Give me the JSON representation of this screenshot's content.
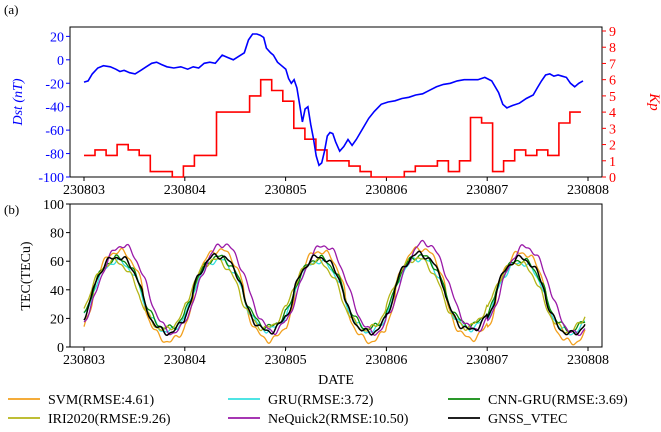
{
  "chart_data": [
    {
      "type": "line",
      "panel_label": "(a)",
      "x": [
        "230803",
        "230804",
        "230805",
        "230806",
        "230807",
        "230808"
      ],
      "ylabel_left": "Dst (nT)",
      "ylabel_right": "Kp",
      "ylim_left": [
        -100,
        28
      ],
      "ylim_right": [
        0,
        9
      ],
      "yticks_left": [
        "20",
        "0",
        "-20",
        "-40",
        "-60",
        "-80",
        "-100"
      ],
      "yticks_right": [
        "0",
        "1",
        "2",
        "3",
        "4",
        "5",
        "6",
        "7",
        "8",
        "9"
      ],
      "colors": {
        "dst": "#0000ff",
        "kp": "#ff0000"
      },
      "series": [
        {
          "name": "Dst",
          "axis": "left",
          "points": [
            [
              0.0,
              -19
            ],
            [
              0.06,
              -18
            ],
            [
              0.12,
              -12
            ],
            [
              0.2,
              -7
            ],
            [
              0.28,
              -5
            ],
            [
              0.38,
              -6
            ],
            [
              0.46,
              -8
            ],
            [
              0.52,
              -10
            ],
            [
              0.58,
              -9
            ],
            [
              0.66,
              -11
            ],
            [
              0.74,
              -12
            ],
            [
              0.82,
              -9
            ],
            [
              0.9,
              -6
            ],
            [
              0.98,
              -3
            ],
            [
              1.05,
              -2
            ],
            [
              1.12,
              -4
            ],
            [
              1.2,
              -6
            ],
            [
              1.3,
              -7
            ],
            [
              1.4,
              -6
            ],
            [
              1.5,
              -8
            ],
            [
              1.58,
              -6
            ],
            [
              1.66,
              -7
            ],
            [
              1.74,
              -3
            ],
            [
              1.82,
              -2
            ],
            [
              1.9,
              -3
            ],
            [
              2.0,
              4
            ],
            [
              2.08,
              2
            ],
            [
              2.16,
              0
            ],
            [
              2.24,
              3
            ],
            [
              2.32,
              6
            ],
            [
              2.38,
              17
            ],
            [
              2.44,
              22
            ],
            [
              2.5,
              22
            ],
            [
              2.55,
              21
            ],
            [
              2.6,
              19
            ],
            [
              2.64,
              10
            ],
            [
              2.7,
              6
            ],
            [
              2.74,
              4
            ],
            [
              2.8,
              -2
            ],
            [
              2.86,
              -5
            ],
            [
              2.92,
              -8
            ],
            [
              2.96,
              -16
            ],
            [
              3.0,
              -20
            ],
            [
              3.04,
              -17
            ],
            [
              3.08,
              -24
            ],
            [
              3.12,
              -38
            ],
            [
              3.16,
              -53
            ],
            [
              3.2,
              -42
            ],
            [
              3.24,
              -40
            ],
            [
              3.28,
              -55
            ],
            [
              3.32,
              -67
            ],
            [
              3.36,
              -82
            ],
            [
              3.4,
              -90
            ],
            [
              3.44,
              -88
            ],
            [
              3.48,
              -78
            ],
            [
              3.52,
              -65
            ],
            [
              3.56,
              -62
            ],
            [
              3.6,
              -63
            ],
            [
              3.64,
              -70
            ],
            [
              3.7,
              -78
            ],
            [
              3.76,
              -74
            ],
            [
              3.82,
              -68
            ],
            [
              3.88,
              -73
            ],
            [
              3.94,
              -68
            ],
            [
              4.0,
              -62
            ],
            [
              4.06,
              -56
            ],
            [
              4.12,
              -50
            ],
            [
              4.2,
              -44
            ],
            [
              4.3,
              -38
            ],
            [
              4.4,
              -36
            ],
            [
              4.5,
              -35
            ],
            [
              4.6,
              -33
            ],
            [
              4.7,
              -32
            ],
            [
              4.8,
              -30
            ],
            [
              4.9,
              -29
            ],
            [
              5.0,
              -26
            ],
            [
              5.1,
              -23
            ],
            [
              5.2,
              -21
            ],
            [
              5.3,
              -20
            ],
            [
              5.4,
              -18
            ],
            [
              5.5,
              -17
            ],
            [
              5.6,
              -17
            ],
            [
              5.7,
              -17
            ],
            [
              5.8,
              -15
            ],
            [
              5.9,
              -18
            ],
            [
              6.0,
              -28
            ],
            [
              6.06,
              -38
            ],
            [
              6.12,
              -41
            ],
            [
              6.2,
              -39
            ],
            [
              6.3,
              -37
            ],
            [
              6.4,
              -33
            ],
            [
              6.5,
              -30
            ],
            [
              6.56,
              -24
            ],
            [
              6.62,
              -18
            ],
            [
              6.68,
              -13
            ],
            [
              6.74,
              -12
            ],
            [
              6.8,
              -14
            ],
            [
              6.86,
              -13
            ],
            [
              6.92,
              -14
            ],
            [
              6.98,
              -15
            ],
            [
              7.04,
              -20
            ],
            [
              7.1,
              -23
            ],
            [
              7.16,
              -20
            ],
            [
              7.22,
              -18
            ]
          ]
        },
        {
          "name": "Kp",
          "axis": "right",
          "step": true,
          "points": [
            [
              0.0,
              1.33
            ],
            [
              0.22,
              1.67
            ],
            [
              0.44,
              1.33
            ],
            [
              0.66,
              2.0
            ],
            [
              0.88,
              1.67
            ],
            [
              1.1,
              1.33
            ],
            [
              1.32,
              0.33
            ],
            [
              1.76,
              0.0
            ],
            [
              1.98,
              0.67
            ],
            [
              2.2,
              1.33
            ],
            [
              2.64,
              4.0
            ],
            [
              3.3,
              5.0
            ],
            [
              3.52,
              6.0
            ],
            [
              3.74,
              5.33
            ],
            [
              3.96,
              4.67
            ],
            [
              4.18,
              3.0
            ],
            [
              4.4,
              2.33
            ],
            [
              4.62,
              1.67
            ],
            [
              4.84,
              1.0
            ],
            [
              5.28,
              0.67
            ],
            [
              5.5,
              0.33
            ],
            [
              5.72,
              0.0
            ],
            [
              6.38,
              0.33
            ],
            [
              6.6,
              0.67
            ],
            [
              6.82,
              0.67
            ],
            [
              7.04,
              1.0
            ],
            [
              7.26,
              0.33
            ],
            [
              7.48,
              1.0
            ],
            [
              7.7,
              3.67
            ],
            [
              7.92,
              3.33
            ],
            [
              8.14,
              0.33
            ],
            [
              8.36,
              1.0
            ],
            [
              8.58,
              1.67
            ],
            [
              8.8,
              1.33
            ],
            [
              9.02,
              1.67
            ],
            [
              9.24,
              1.33
            ],
            [
              9.46,
              3.33
            ],
            [
              9.68,
              4.0
            ],
            [
              9.9,
              4.0
            ]
          ]
        }
      ]
    },
    {
      "type": "line",
      "panel_label": "(b)",
      "xlabel": "DATE",
      "ylabel": "TEC(TECu)",
      "x": [
        "230803",
        "230804",
        "230805",
        "230806",
        "230807",
        "230808"
      ],
      "ylim": [
        0,
        100
      ],
      "yticks": [
        "0",
        "20",
        "40",
        "60",
        "80",
        "100"
      ],
      "legend_position": "bottom",
      "series": [
        {
          "name": "SVM(RMSE:4.61)",
          "color": "#f2a01e",
          "period_peak": 67,
          "period_trough": 4
        },
        {
          "name": "GRU(RMSE:3.72)",
          "color": "#36e0e0",
          "period_peak": 60,
          "period_trough": 11
        },
        {
          "name": "CNN-GRU(RMSE:3.69)",
          "color": "#0b8a0b",
          "period_peak": 62,
          "period_trough": 13
        },
        {
          "name": "IRI2020(RMSE:9.26)",
          "color": "#b5b518",
          "period_peak": 60,
          "period_trough": 12
        },
        {
          "name": "NeQuick2(RMSE:10.50)",
          "color": "#9a1aa8",
          "period_peak": 71,
          "period_trough": 10
        },
        {
          "name": "GNSS_VTEC",
          "color": "#000000",
          "period_peak": 63,
          "period_trough": 10
        }
      ]
    }
  ]
}
